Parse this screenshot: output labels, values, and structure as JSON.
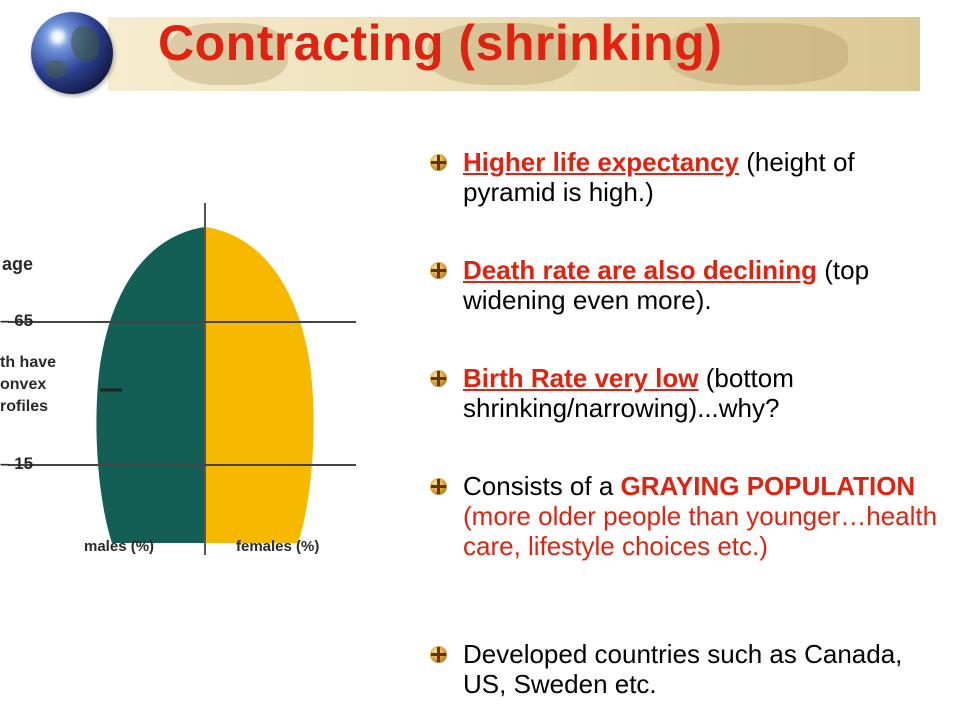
{
  "title": "Contracting (shrinking)",
  "colors": {
    "title": "#e0220f",
    "males": "#135f55",
    "females": "#f7b900"
  },
  "logo": {
    "icon": "globe-icon"
  },
  "figure": {
    "labels": {
      "age": "age",
      "age65": "65",
      "age15": "15",
      "both_line1": "th have",
      "both_line2": "onvex",
      "both_line3": "rofiles",
      "males": "males (%)",
      "females": "females (%)"
    }
  },
  "bullets": [
    {
      "highlight": "Higher life expectancy",
      "rest": " (height of pyramid is high.)"
    },
    {
      "highlight": "Death rate are also declining",
      "rest": " (top widening even more)."
    },
    {
      "highlight": "Birth Rate very low",
      "rest": " (bottom shrinking/narrowing)...why?"
    },
    {
      "lead": "Consists of a ",
      "bold_red": "GRAYING POPULATION",
      "red_rest": " (more older people than younger…health care, lifestyle choices etc.)"
    },
    {
      "text": "Developed countries such as Canada, US, Sweden etc."
    }
  ]
}
